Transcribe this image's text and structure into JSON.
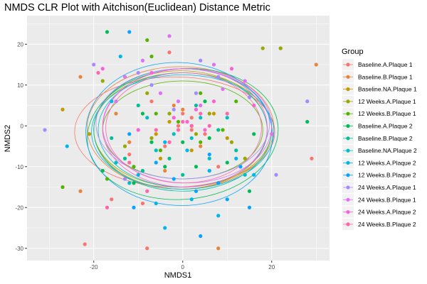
{
  "chart_data": {
    "type": "scatter",
    "title": "NMDS CLR Plot with Aitchison(Euclidean) Distance Metric",
    "xlabel": "NMDS1",
    "ylabel": "NMDS2",
    "xlim": [
      -35,
      33
    ],
    "ylim": [
      -33,
      27
    ],
    "x_ticks": [
      -20,
      0,
      20
    ],
    "y_ticks": [
      -30,
      -20,
      -10,
      0,
      10,
      20
    ],
    "grid": true,
    "legend_position": "right",
    "legend_title": "Group",
    "series": [
      {
        "name": "Baseline.A.Plaque 1",
        "color": "#F8766D",
        "ellipse": {
          "cx": -1.8,
          "cy": -1.5,
          "rx": 22.5,
          "ry": 13.5,
          "angle": 0
        },
        "points": [
          [
            -22,
            -29
          ],
          [
            -16,
            -18
          ],
          [
            -9,
            -19
          ],
          [
            -8,
            -30
          ],
          [
            -12,
            -7
          ],
          [
            -4,
            -5
          ],
          [
            0,
            3
          ],
          [
            2,
            -1
          ],
          [
            5,
            -2
          ],
          [
            -7,
            6
          ],
          [
            8,
            -10
          ],
          [
            -3,
            18
          ],
          [
            29,
            -8
          ],
          [
            2,
            2
          ],
          [
            -1,
            0
          ]
        ]
      },
      {
        "name": "Baseline.B.Plaque 1",
        "color": "#E8853A",
        "ellipse": {
          "cx": -0.5,
          "cy": -0.5,
          "rx": 21,
          "ry": 15,
          "angle": 0
        },
        "points": [
          [
            -23,
            -16
          ],
          [
            -23,
            12
          ],
          [
            30,
            15
          ],
          [
            8,
            -30
          ],
          [
            -12,
            -4
          ],
          [
            -4,
            -11
          ],
          [
            4,
            -5
          ],
          [
            0,
            4
          ],
          [
            -2,
            5
          ],
          [
            -15,
            3
          ]
        ]
      },
      {
        "name": "Baseline.NA.Plaque 1",
        "color": "#C49A00",
        "ellipse": {
          "cx": -0.5,
          "cy": -1,
          "rx": 19.5,
          "ry": 14.5,
          "angle": 0
        },
        "points": [
          [
            -27,
            4
          ],
          [
            -21,
            -2
          ],
          [
            2,
            -6
          ],
          [
            -6,
            -2
          ],
          [
            -3,
            1
          ],
          [
            7,
            3
          ],
          [
            10,
            -3
          ],
          [
            -5,
            -8
          ],
          [
            22,
            19
          ]
        ]
      },
      {
        "name": "12 Weeks.A.Plaque 1",
        "color": "#99A800",
        "ellipse": {
          "cx": 0,
          "cy": -1,
          "rx": 20,
          "ry": 14,
          "angle": 0
        },
        "points": [
          [
            -18,
            11
          ],
          [
            18,
            19
          ],
          [
            22,
            19
          ],
          [
            -13,
            -5
          ],
          [
            -7,
            -3
          ],
          [
            -3,
            3
          ],
          [
            3,
            -2
          ],
          [
            6,
            3
          ],
          [
            11,
            -4
          ],
          [
            -8,
            8
          ],
          [
            14,
            -8
          ]
        ]
      },
      {
        "name": "12 Weeks.B.Plaque 1",
        "color": "#53B400",
        "ellipse": {
          "cx": 0,
          "cy": -1,
          "rx": 18,
          "ry": 12,
          "angle": 0
        },
        "points": [
          [
            -7,
            17
          ],
          [
            -8,
            21
          ],
          [
            -17,
            -13
          ],
          [
            -27,
            -15
          ],
          [
            -11,
            -10
          ],
          [
            -5,
            -6
          ],
          [
            -1,
            1
          ],
          [
            4,
            -4
          ],
          [
            9,
            -1
          ],
          [
            -6,
            3
          ],
          [
            12,
            6
          ],
          [
            4,
            8
          ]
        ]
      },
      {
        "name": "Baseline.A.Plaque 2",
        "color": "#00BC56",
        "ellipse": {
          "cx": 0,
          "cy": -2,
          "rx": 21.5,
          "ry": 16,
          "angle": -5
        },
        "points": [
          [
            -17,
            23
          ],
          [
            6,
            -3
          ],
          [
            -7,
            -4
          ],
          [
            -4,
            -10
          ],
          [
            0,
            -4
          ],
          [
            3,
            -10
          ],
          [
            10,
            -9
          ],
          [
            -9,
            3
          ],
          [
            5,
            6
          ],
          [
            15,
            -16
          ],
          [
            -18,
            -11
          ],
          [
            16,
            -2
          ],
          [
            28,
            1
          ],
          [
            -11,
            -14
          ]
        ]
      },
      {
        "name": "Baseline.B.Plaque 2",
        "color": "#00C094",
        "ellipse": {
          "cx": 0,
          "cy": -1,
          "rx": 20,
          "ry": 15,
          "angle": 0
        },
        "points": [
          [
            -13,
            -8
          ],
          [
            -9,
            -11
          ],
          [
            -3,
            -8
          ],
          [
            0,
            -12
          ],
          [
            6,
            -11
          ],
          [
            12,
            -6
          ],
          [
            -10,
            5
          ],
          [
            3,
            5
          ],
          [
            -16,
            -3
          ],
          [
            8,
            -1
          ]
        ]
      },
      {
        "name": "Baseline.NA.Plaque 2",
        "color": "#00BFC4",
        "ellipse": {
          "cx": 0,
          "cy": -1,
          "rx": 19,
          "ry": 14,
          "angle": 0
        },
        "points": [
          [
            -15,
            -9
          ],
          [
            -6,
            -6
          ],
          [
            -2,
            -2
          ],
          [
            2,
            -3
          ],
          [
            6,
            -8
          ],
          [
            10,
            2
          ],
          [
            -8,
            2
          ],
          [
            4,
            2
          ],
          [
            -12,
            -14
          ],
          [
            14,
            -12
          ]
        ]
      },
      {
        "name": "12 Weeks.A.Plaque 2",
        "color": "#00B6EB",
        "ellipse": {
          "cx": 0,
          "cy": -1.5,
          "rx": 20.5,
          "ry": 14,
          "angle": 0
        },
        "points": [
          [
            -26,
            -5
          ],
          [
            -16,
            6
          ],
          [
            -10,
            -12
          ],
          [
            -4,
            -4
          ],
          [
            1,
            -6
          ],
          [
            6,
            -11
          ],
          [
            12,
            -8
          ],
          [
            -6,
            -19
          ],
          [
            -4,
            -25
          ],
          [
            2,
            -18
          ],
          [
            8,
            -22
          ],
          [
            16,
            -12
          ],
          [
            -14,
            17
          ]
        ]
      },
      {
        "name": "12 Weeks.B.Plaque 2",
        "color": "#06A4FF",
        "ellipse": {
          "cx": -0.8,
          "cy": -2,
          "rx": 21,
          "ry": 17.5,
          "angle": 3
        },
        "points": [
          [
            -12,
            23
          ],
          [
            -12,
            -2
          ],
          [
            -6,
            -9
          ],
          [
            -2,
            -13
          ],
          [
            3,
            -16
          ],
          [
            8,
            -14
          ],
          [
            13,
            -10
          ],
          [
            4,
            -27
          ],
          [
            -11,
            -20
          ],
          [
            10,
            -18
          ],
          [
            15,
            -20
          ],
          [
            6,
            -7
          ]
        ]
      },
      {
        "name": "24 Weeks.A.Plaque 1",
        "color": "#A58AFF",
        "ellipse": {
          "cx": 0,
          "cy": 0.5,
          "rx": 19.5,
          "ry": 13.5,
          "angle": 0
        },
        "points": [
          [
            -31,
            -1
          ],
          [
            -13,
            -13
          ],
          [
            -7,
            10
          ],
          [
            -2,
            4
          ],
          [
            3,
            8
          ],
          [
            8,
            12
          ],
          [
            15,
            7
          ],
          [
            21,
            -12
          ],
          [
            28,
            6
          ],
          [
            -20,
            15
          ],
          [
            -10,
            13
          ],
          [
            4,
            16
          ]
        ]
      },
      {
        "name": "24 Weeks.B.Plaque 1",
        "color": "#DF70F8",
        "ellipse": {
          "cx": 1,
          "cy": 0,
          "rx": 19,
          "ry": 14,
          "angle": 0
        },
        "points": [
          [
            -13,
            12
          ],
          [
            -9,
            16
          ],
          [
            -5,
            8
          ],
          [
            -1,
            6
          ],
          [
            4,
            5
          ],
          [
            9,
            9
          ],
          [
            14,
            11
          ],
          [
            20,
            -2
          ],
          [
            -15,
            6
          ],
          [
            7,
            15
          ],
          [
            -3,
            22
          ]
        ]
      },
      {
        "name": "24 Weeks.A.Plaque 2",
        "color": "#FB61D7",
        "ellipse": {
          "cx": 0.5,
          "cy": -0.5,
          "rx": 18.5,
          "ry": 14.5,
          "angle": 0
        },
        "points": [
          [
            -18,
            14
          ],
          [
            -7,
            13
          ],
          [
            -2,
            2
          ],
          [
            1,
            1
          ],
          [
            3,
            4
          ],
          [
            7,
            6
          ],
          [
            11,
            14
          ],
          [
            16,
            5
          ],
          [
            -10,
            -1
          ],
          [
            5,
            -1
          ],
          [
            2,
            0
          ]
        ]
      },
      {
        "name": "24 Weeks.B.Plaque 2",
        "color": "#FF66A8",
        "ellipse": {
          "cx": 0.2,
          "cy": -0.5,
          "rx": 17.5,
          "ry": 13.5,
          "angle": 0
        },
        "points": [
          [
            -19,
            13
          ],
          [
            -12,
            -9
          ],
          [
            -6,
            -1
          ],
          [
            -1,
            -1
          ],
          [
            0,
            1
          ],
          [
            2,
            0
          ],
          [
            6,
            0
          ],
          [
            10,
            3
          ],
          [
            -3,
            -4
          ],
          [
            4,
            3
          ],
          [
            -17,
            -20
          ],
          [
            -8,
            -16
          ]
        ]
      }
    ]
  }
}
